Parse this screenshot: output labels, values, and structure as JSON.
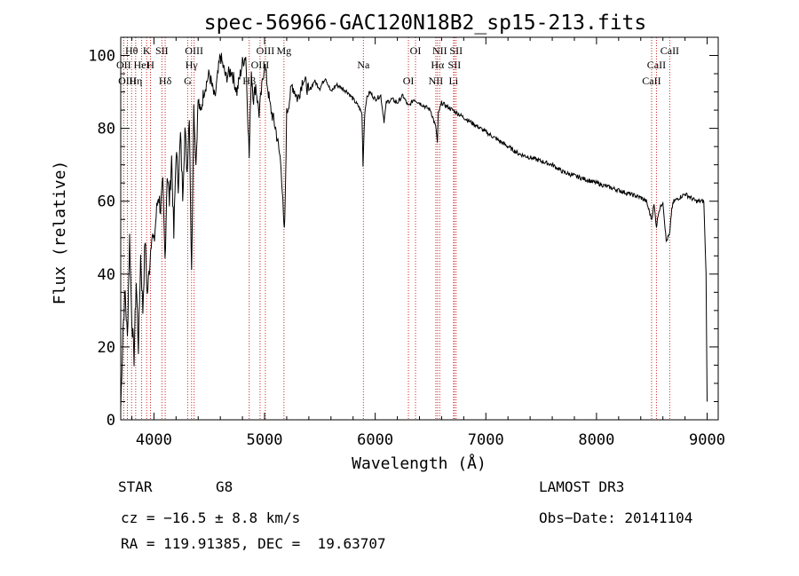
{
  "chart_data": {
    "type": "line",
    "title": "spec-56966-GAC120N18B2_sp15-213.fits",
    "xlabel": "Wavelength (Å)",
    "ylabel": "Flux (relative)",
    "xlim": [
      3700,
      9100
    ],
    "ylim": [
      0,
      105
    ],
    "xticks": [
      4000,
      5000,
      6000,
      7000,
      8000,
      9000
    ],
    "yticks": [
      0,
      20,
      40,
      60,
      80,
      100
    ],
    "series": [
      {
        "name": "spectrum",
        "x": [
          3700,
          3720,
          3740,
          3760,
          3780,
          3800,
          3820,
          3840,
          3860,
          3880,
          3900,
          3920,
          3940,
          3960,
          3980,
          4000,
          4020,
          4040,
          4060,
          4080,
          4100,
          4120,
          4140,
          4160,
          4180,
          4200,
          4220,
          4240,
          4260,
          4280,
          4300,
          4320,
          4340,
          4360,
          4380,
          4400,
          4420,
          4450,
          4500,
          4550,
          4600,
          4650,
          4700,
          4750,
          4800,
          4830,
          4861,
          4880,
          4900,
          4920,
          4950,
          5000,
          5050,
          5100,
          5150,
          5175,
          5183,
          5200,
          5250,
          5300,
          5350,
          5400,
          5450,
          5500,
          5550,
          5600,
          5650,
          5700,
          5750,
          5800,
          5850,
          5880,
          5890,
          5896,
          5905,
          5920,
          5950,
          6000,
          6050,
          6080,
          6100,
          6150,
          6200,
          6250,
          6300,
          6350,
          6400,
          6450,
          6500,
          6530,
          6550,
          6562,
          6570,
          6600,
          6650,
          6700,
          6750,
          6800,
          6850,
          6900,
          6950,
          7000,
          7100,
          7200,
          7300,
          7400,
          7500,
          7600,
          7700,
          7800,
          7900,
          8000,
          8100,
          8200,
          8300,
          8400,
          8450,
          8498,
          8520,
          8542,
          8560,
          8600,
          8630,
          8662,
          8680,
          8700,
          8750,
          8800,
          8850,
          8900,
          8940,
          8970,
          8990,
          9000
        ],
        "y": [
          3,
          25,
          35,
          22,
          50,
          28,
          17,
          38,
          20,
          45,
          30,
          50,
          34,
          42,
          52,
          48,
          56,
          62,
          58,
          64,
          44,
          68,
          60,
          72,
          50,
          74,
          65,
          78,
          62,
          80,
          68,
          84,
          40,
          86,
          70,
          88,
          84,
          90,
          95,
          88,
          100,
          94,
          96,
          90,
          98,
          100,
          72,
          96,
          88,
          92,
          84,
          98,
          86,
          80,
          70,
          52,
          54,
          84,
          92,
          88,
          94,
          90,
          93,
          91,
          94,
          90,
          92,
          91,
          90,
          88,
          86,
          84,
          70,
          76,
          84,
          88,
          90,
          88,
          89,
          82,
          87,
          88,
          87,
          89,
          86,
          88,
          87,
          86,
          85,
          82,
          80,
          76,
          84,
          87,
          86,
          85,
          84,
          83,
          82,
          81,
          80,
          79,
          77,
          75,
          73,
          72,
          71,
          70,
          68,
          67,
          66,
          65,
          64,
          63,
          62,
          61,
          60,
          55,
          59,
          53,
          57,
          60,
          49,
          51,
          58,
          60,
          61,
          62,
          61,
          60,
          60,
          60,
          40,
          5
        ]
      }
    ],
    "line_markers": [
      {
        "label": "Hθ",
        "wave": 3798
      },
      {
        "label": "OII",
        "wave": 3727
      },
      {
        "label": "OIII",
        "wave": 3760
      },
      {
        "label": "K",
        "wave": 3934
      },
      {
        "label": "HeI",
        "wave": 3889
      },
      {
        "label": "Hη",
        "wave": 3835
      },
      {
        "label": "SII",
        "wave": 4072
      },
      {
        "label": "H",
        "wave": 3969
      },
      {
        "label": "Hδ",
        "wave": 4102
      },
      {
        "label": "OIII",
        "wave": 4363
      },
      {
        "label": "Hγ",
        "wave": 4340
      },
      {
        "label": "G",
        "wave": 4305
      },
      {
        "label": "OIII",
        "wave": 5007
      },
      {
        "label": "OIII",
        "wave": 4959
      },
      {
        "label": "Hβ",
        "wave": 4861
      },
      {
        "label": "Mg",
        "wave": 5175
      },
      {
        "label": "Na",
        "wave": 5893
      },
      {
        "label": "OI",
        "wave": 6300
      },
      {
        "label": "OI",
        "wave": 6364
      },
      {
        "label": "Hα",
        "wave": 6563
      },
      {
        "label": "NII",
        "wave": 6548
      },
      {
        "label": "NII",
        "wave": 6583
      },
      {
        "label": "SII",
        "wave": 6716
      },
      {
        "label": "Li",
        "wave": 6708
      },
      {
        "label": "SII",
        "wave": 6731
      },
      {
        "label": "CaII",
        "wave": 8542
      },
      {
        "label": "CaII",
        "wave": 8498
      },
      {
        "label": "CaII",
        "wave": 8662
      }
    ]
  },
  "info": {
    "class_label": "STAR",
    "subclass": "G8",
    "survey": "LAMOST DR3",
    "cz": "cz = −16.5 ± 8.8 km/s",
    "obs_date": "Obs−Date: 20141104",
    "coords": "RA = 119.91385, DEC =  19.63707"
  },
  "colors": {
    "spectrum": "#000000",
    "marker_line": "#cc2222",
    "axis": "#000000"
  }
}
